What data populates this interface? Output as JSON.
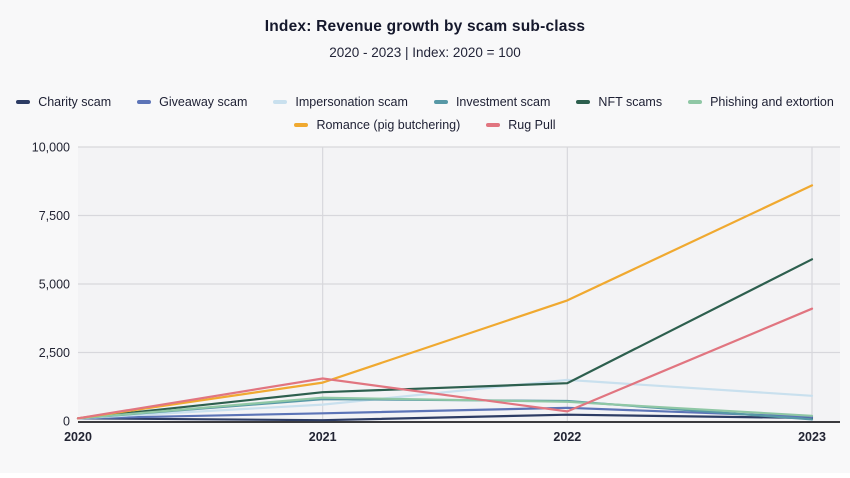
{
  "header": {
    "title": "Index: Revenue growth by scam sub-class",
    "subtitle": "2020 - 2023 | Index: 2020 = 100"
  },
  "colors": {
    "page_background": "#f8f8f9",
    "plot_background": "#f3f3f5",
    "gridline": "#d7d7dc",
    "axis_line": "#3a3a3e",
    "tick_text": "#222433",
    "title_text": "#15182c"
  },
  "chart_data": {
    "type": "line",
    "title": "Index: Revenue growth by scam sub-class",
    "subtitle": "2020 - 2023 | Index: 2020 = 100",
    "x": [
      2020,
      2021,
      2022,
      2023
    ],
    "x_ticks": [
      "2020",
      "2021",
      "2022",
      "2023"
    ],
    "y_ticks": [
      "0",
      "2,500",
      "5,000",
      "7,500",
      "10,000"
    ],
    "y_tick_values": [
      0,
      2500,
      5000,
      7500,
      10000
    ],
    "ylim": [
      0,
      10000
    ],
    "grid": true,
    "legend_position": "top",
    "legend_rows": [
      6,
      2
    ],
    "series": [
      {
        "name": "Charity scam",
        "color": "#2d3c64",
        "values": [
          100,
          30,
          230,
          110
        ]
      },
      {
        "name": "Giveaway scam",
        "color": "#5c74b7",
        "values": [
          100,
          280,
          480,
          150
        ]
      },
      {
        "name": "Impersonation scam",
        "color": "#c9e0ee",
        "values": [
          100,
          600,
          1500,
          920
        ]
      },
      {
        "name": "Investment scam",
        "color": "#5798a6",
        "values": [
          100,
          800,
          730,
          60
        ]
      },
      {
        "name": "NFT scams",
        "color": "#2d5f4e",
        "values": [
          100,
          1050,
          1380,
          5900
        ]
      },
      {
        "name": "Phishing and extortion",
        "color": "#8fc7a5",
        "values": [
          100,
          850,
          700,
          190
        ]
      },
      {
        "name": "Romance (pig butchering)",
        "color": "#f0a930",
        "values": [
          100,
          1400,
          4400,
          8600
        ]
      },
      {
        "name": "Rug Pull",
        "color": "#e17580",
        "values": [
          100,
          1550,
          350,
          4100
        ]
      }
    ]
  }
}
